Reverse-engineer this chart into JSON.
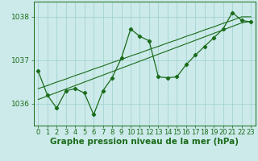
{
  "title": "Graphe pression niveau de la mer (hPa)",
  "x_values": [
    0,
    1,
    2,
    3,
    4,
    5,
    6,
    7,
    8,
    9,
    10,
    11,
    12,
    13,
    14,
    15,
    16,
    17,
    18,
    19,
    20,
    21,
    22,
    23
  ],
  "y_main": [
    1036.75,
    1036.2,
    1035.9,
    1036.3,
    1036.35,
    1036.25,
    1035.75,
    1036.3,
    1036.6,
    1037.05,
    1037.72,
    1037.55,
    1037.45,
    1036.62,
    1036.6,
    1036.62,
    1036.9,
    1037.12,
    1037.32,
    1037.52,
    1037.72,
    1038.1,
    1037.92,
    1037.88
  ],
  "y_trend1": [
    1036.35,
    1036.42,
    1036.5,
    1036.57,
    1036.65,
    1036.72,
    1036.8,
    1036.87,
    1036.95,
    1037.02,
    1037.1,
    1037.17,
    1037.25,
    1037.32,
    1037.4,
    1037.47,
    1037.55,
    1037.62,
    1037.7,
    1037.77,
    1037.85,
    1037.92,
    1038.0,
    1038.0
  ],
  "y_trend2": [
    1036.1,
    1036.18,
    1036.26,
    1036.34,
    1036.42,
    1036.5,
    1036.58,
    1036.66,
    1036.74,
    1036.82,
    1036.9,
    1036.98,
    1037.06,
    1037.14,
    1037.22,
    1037.3,
    1037.38,
    1037.46,
    1037.54,
    1037.62,
    1037.7,
    1037.78,
    1037.86,
    1037.9
  ],
  "ylim": [
    1035.5,
    1038.35
  ],
  "yticks": [
    1036,
    1037,
    1038
  ],
  "line_color": "#1a6b1a",
  "bg_color": "#cceaea",
  "grid_color": "#9ecece",
  "title_fontsize": 7.5,
  "tick_fontsize": 6.5
}
